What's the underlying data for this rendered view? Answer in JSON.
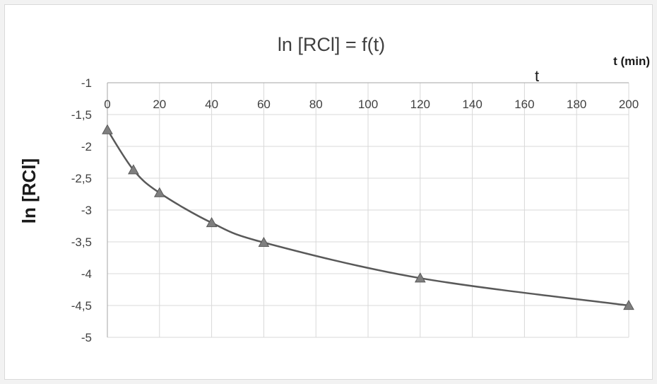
{
  "chart_data": {
    "type": "line",
    "title": "ln [RCl]  = f(t)",
    "xlabel": "t (min)",
    "ylabel": "ln [RCl]",
    "annotation": "t",
    "xlim": [
      0,
      200
    ],
    "ylim": [
      -5,
      -1
    ],
    "x_ticks": [
      "0",
      "20",
      "40",
      "60",
      "80",
      "100",
      "120",
      "140",
      "160",
      "180",
      "200"
    ],
    "y_ticks": [
      "-1",
      "-1,5",
      "-2",
      "-2,5",
      "-3",
      "-3,5",
      "-4",
      "-4,5",
      "-5"
    ],
    "grid": true,
    "x_axis_position": "top",
    "series": [
      {
        "marker": "triangle",
        "color": "#595959",
        "x": [
          0,
          10,
          20,
          40,
          60,
          120,
          200
        ],
        "y": [
          -1.74,
          -2.37,
          -2.73,
          -3.2,
          -3.51,
          -4.07,
          -4.5
        ]
      }
    ]
  }
}
